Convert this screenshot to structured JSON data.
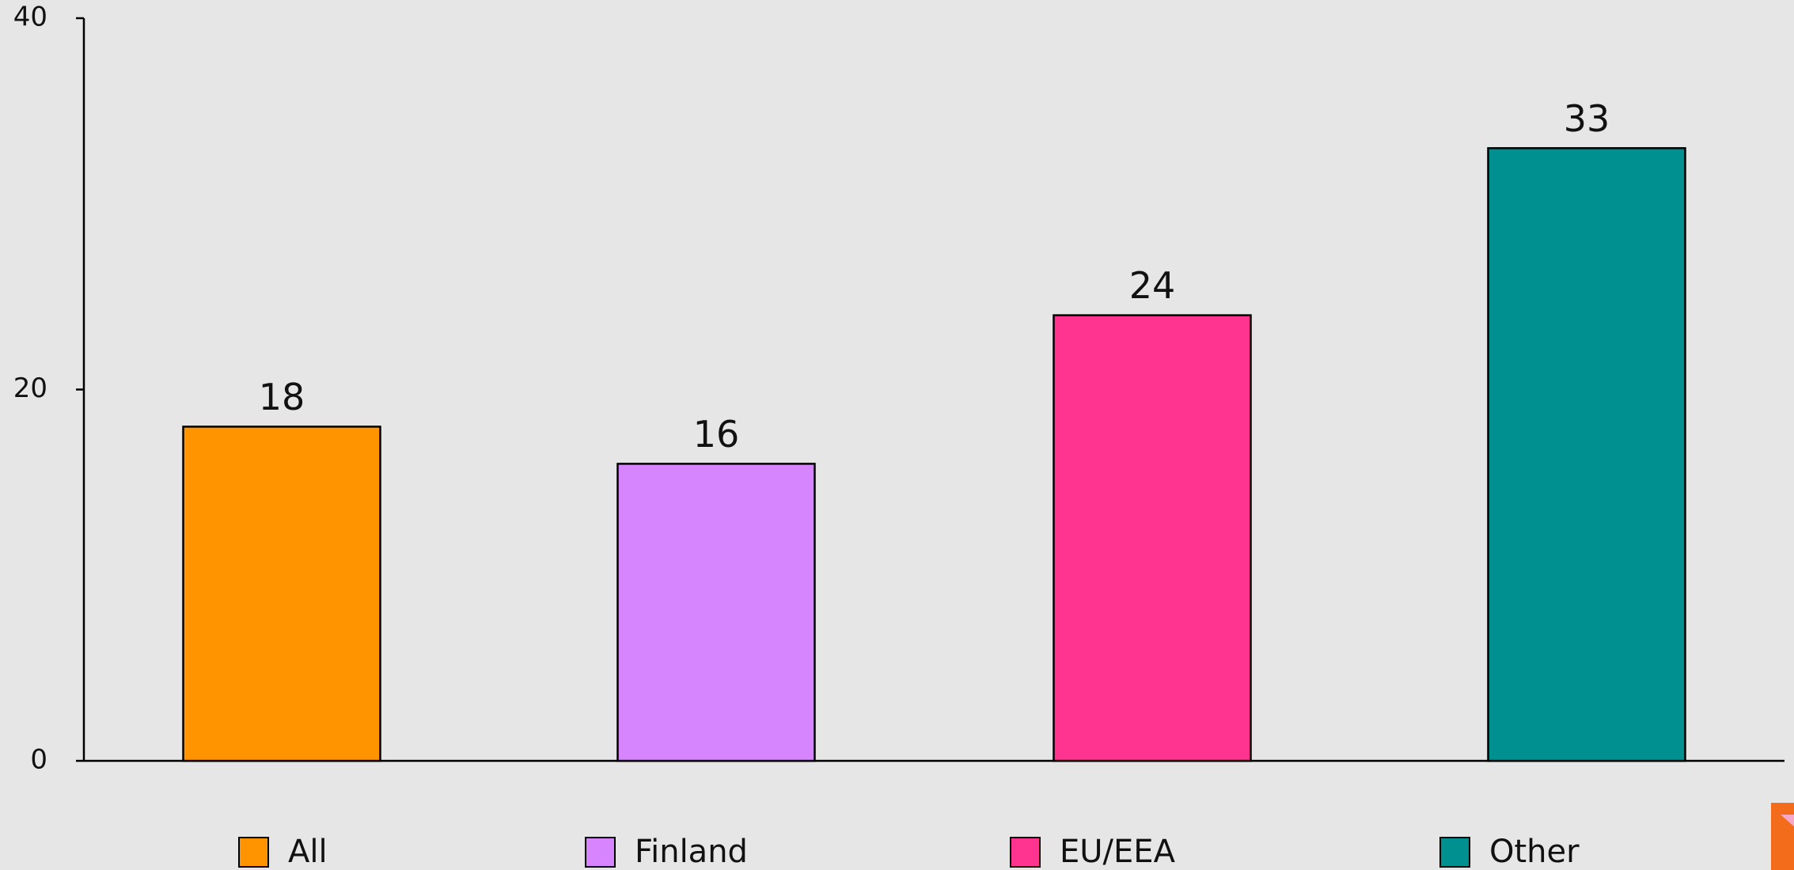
{
  "chart_data": {
    "type": "bar",
    "categories": [
      "All",
      "Finland",
      "EU/EEA",
      "Other"
    ],
    "values": [
      18,
      16,
      24,
      33
    ],
    "colors": [
      "#ff9400",
      "#d685ff",
      "#ff3390",
      "#009090"
    ],
    "ylim": [
      0,
      40
    ],
    "yticks": [
      0,
      20,
      40
    ],
    "grid": false,
    "legend": "bottom"
  }
}
